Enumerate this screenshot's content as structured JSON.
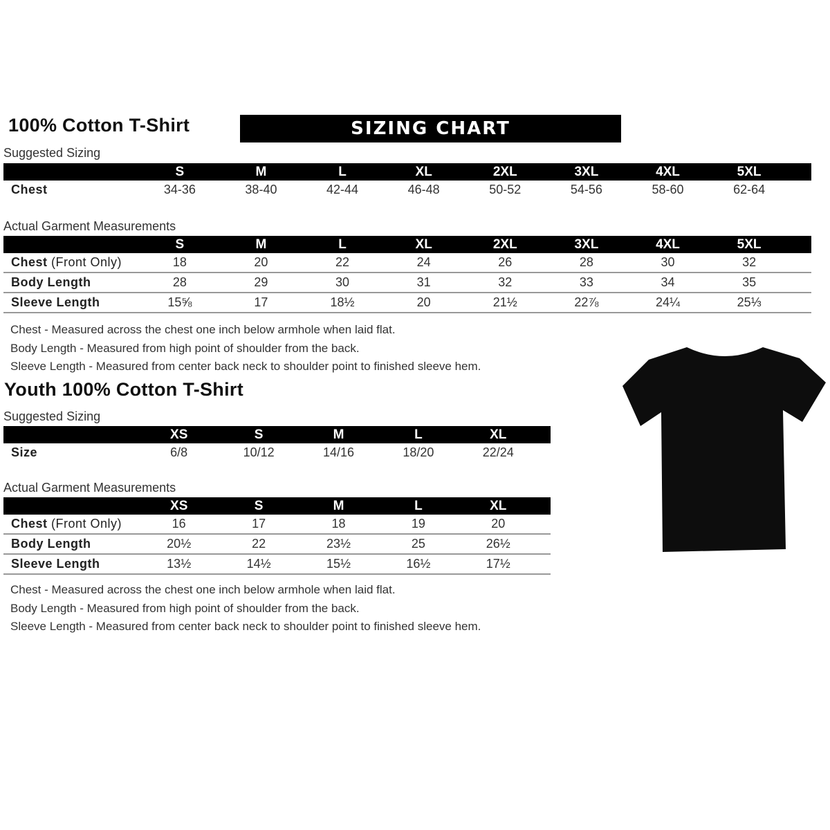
{
  "adult": {
    "title": "100% Cotton T-Shirt",
    "banner": "SIZING CHART",
    "suggested_label": "Suggested Sizing",
    "sizes": [
      "S",
      "M",
      "L",
      "XL",
      "2XL",
      "3XL",
      "4XL",
      "5XL"
    ],
    "chest_label": "Chest",
    "chest": [
      "34-36",
      "38-40",
      "42-44",
      "46-48",
      "50-52",
      "54-56",
      "58-60",
      "62-64"
    ],
    "actual_label": "Actual Garment Measurements",
    "rows": [
      {
        "label": "Chest",
        "label_extra": " (Front Only)",
        "values": [
          "18",
          "20",
          "22",
          "24",
          "26",
          "28",
          "30",
          "32"
        ]
      },
      {
        "label": "Body Length",
        "label_extra": "",
        "values": [
          "28",
          "29",
          "30",
          "31",
          "32",
          "33",
          "34",
          "35"
        ]
      },
      {
        "label": "Sleeve Length",
        "label_extra": "",
        "values": [
          "15⅝",
          "17",
          "18½",
          "20",
          "21½",
          "22⅞",
          "24¼",
          "25⅓"
        ]
      }
    ],
    "notes": [
      "Chest - Measured across the chest one inch below armhole when laid flat.",
      "Body Length - Measured from high point of shoulder from the back.",
      "Sleeve Length - Measured from center back neck to shoulder point to finished sleeve hem."
    ]
  },
  "youth": {
    "title": "Youth 100% Cotton T-Shirt",
    "suggested_label": "Suggested Sizing",
    "sizes": [
      "XS",
      "S",
      "M",
      "L",
      "XL"
    ],
    "size_label": "Size",
    "size_values": [
      "6/8",
      "10/12",
      "14/16",
      "18/20",
      "22/24"
    ],
    "actual_label": "Actual Garment Measurements",
    "rows": [
      {
        "label": "Chest",
        "label_extra": " (Front Only)",
        "values": [
          "16",
          "17",
          "18",
          "19",
          "20"
        ]
      },
      {
        "label": "Body Length",
        "label_extra": "",
        "values": [
          "20½",
          "22",
          "23½",
          "25",
          "26½"
        ]
      },
      {
        "label": "Sleeve Length",
        "label_extra": "",
        "values": [
          "13½",
          "14½",
          "15½",
          "16½",
          "17½"
        ]
      }
    ],
    "notes": [
      "Chest - Measured across the chest one inch below armhole when laid flat.",
      "Body Length - Measured from high point of shoulder from the back.",
      "Sleeve Length - Measured from center back neck to shoulder point to finished sleeve hem."
    ]
  },
  "image": {
    "icon": "t-shirt-icon",
    "color": "#0d0d0d"
  }
}
